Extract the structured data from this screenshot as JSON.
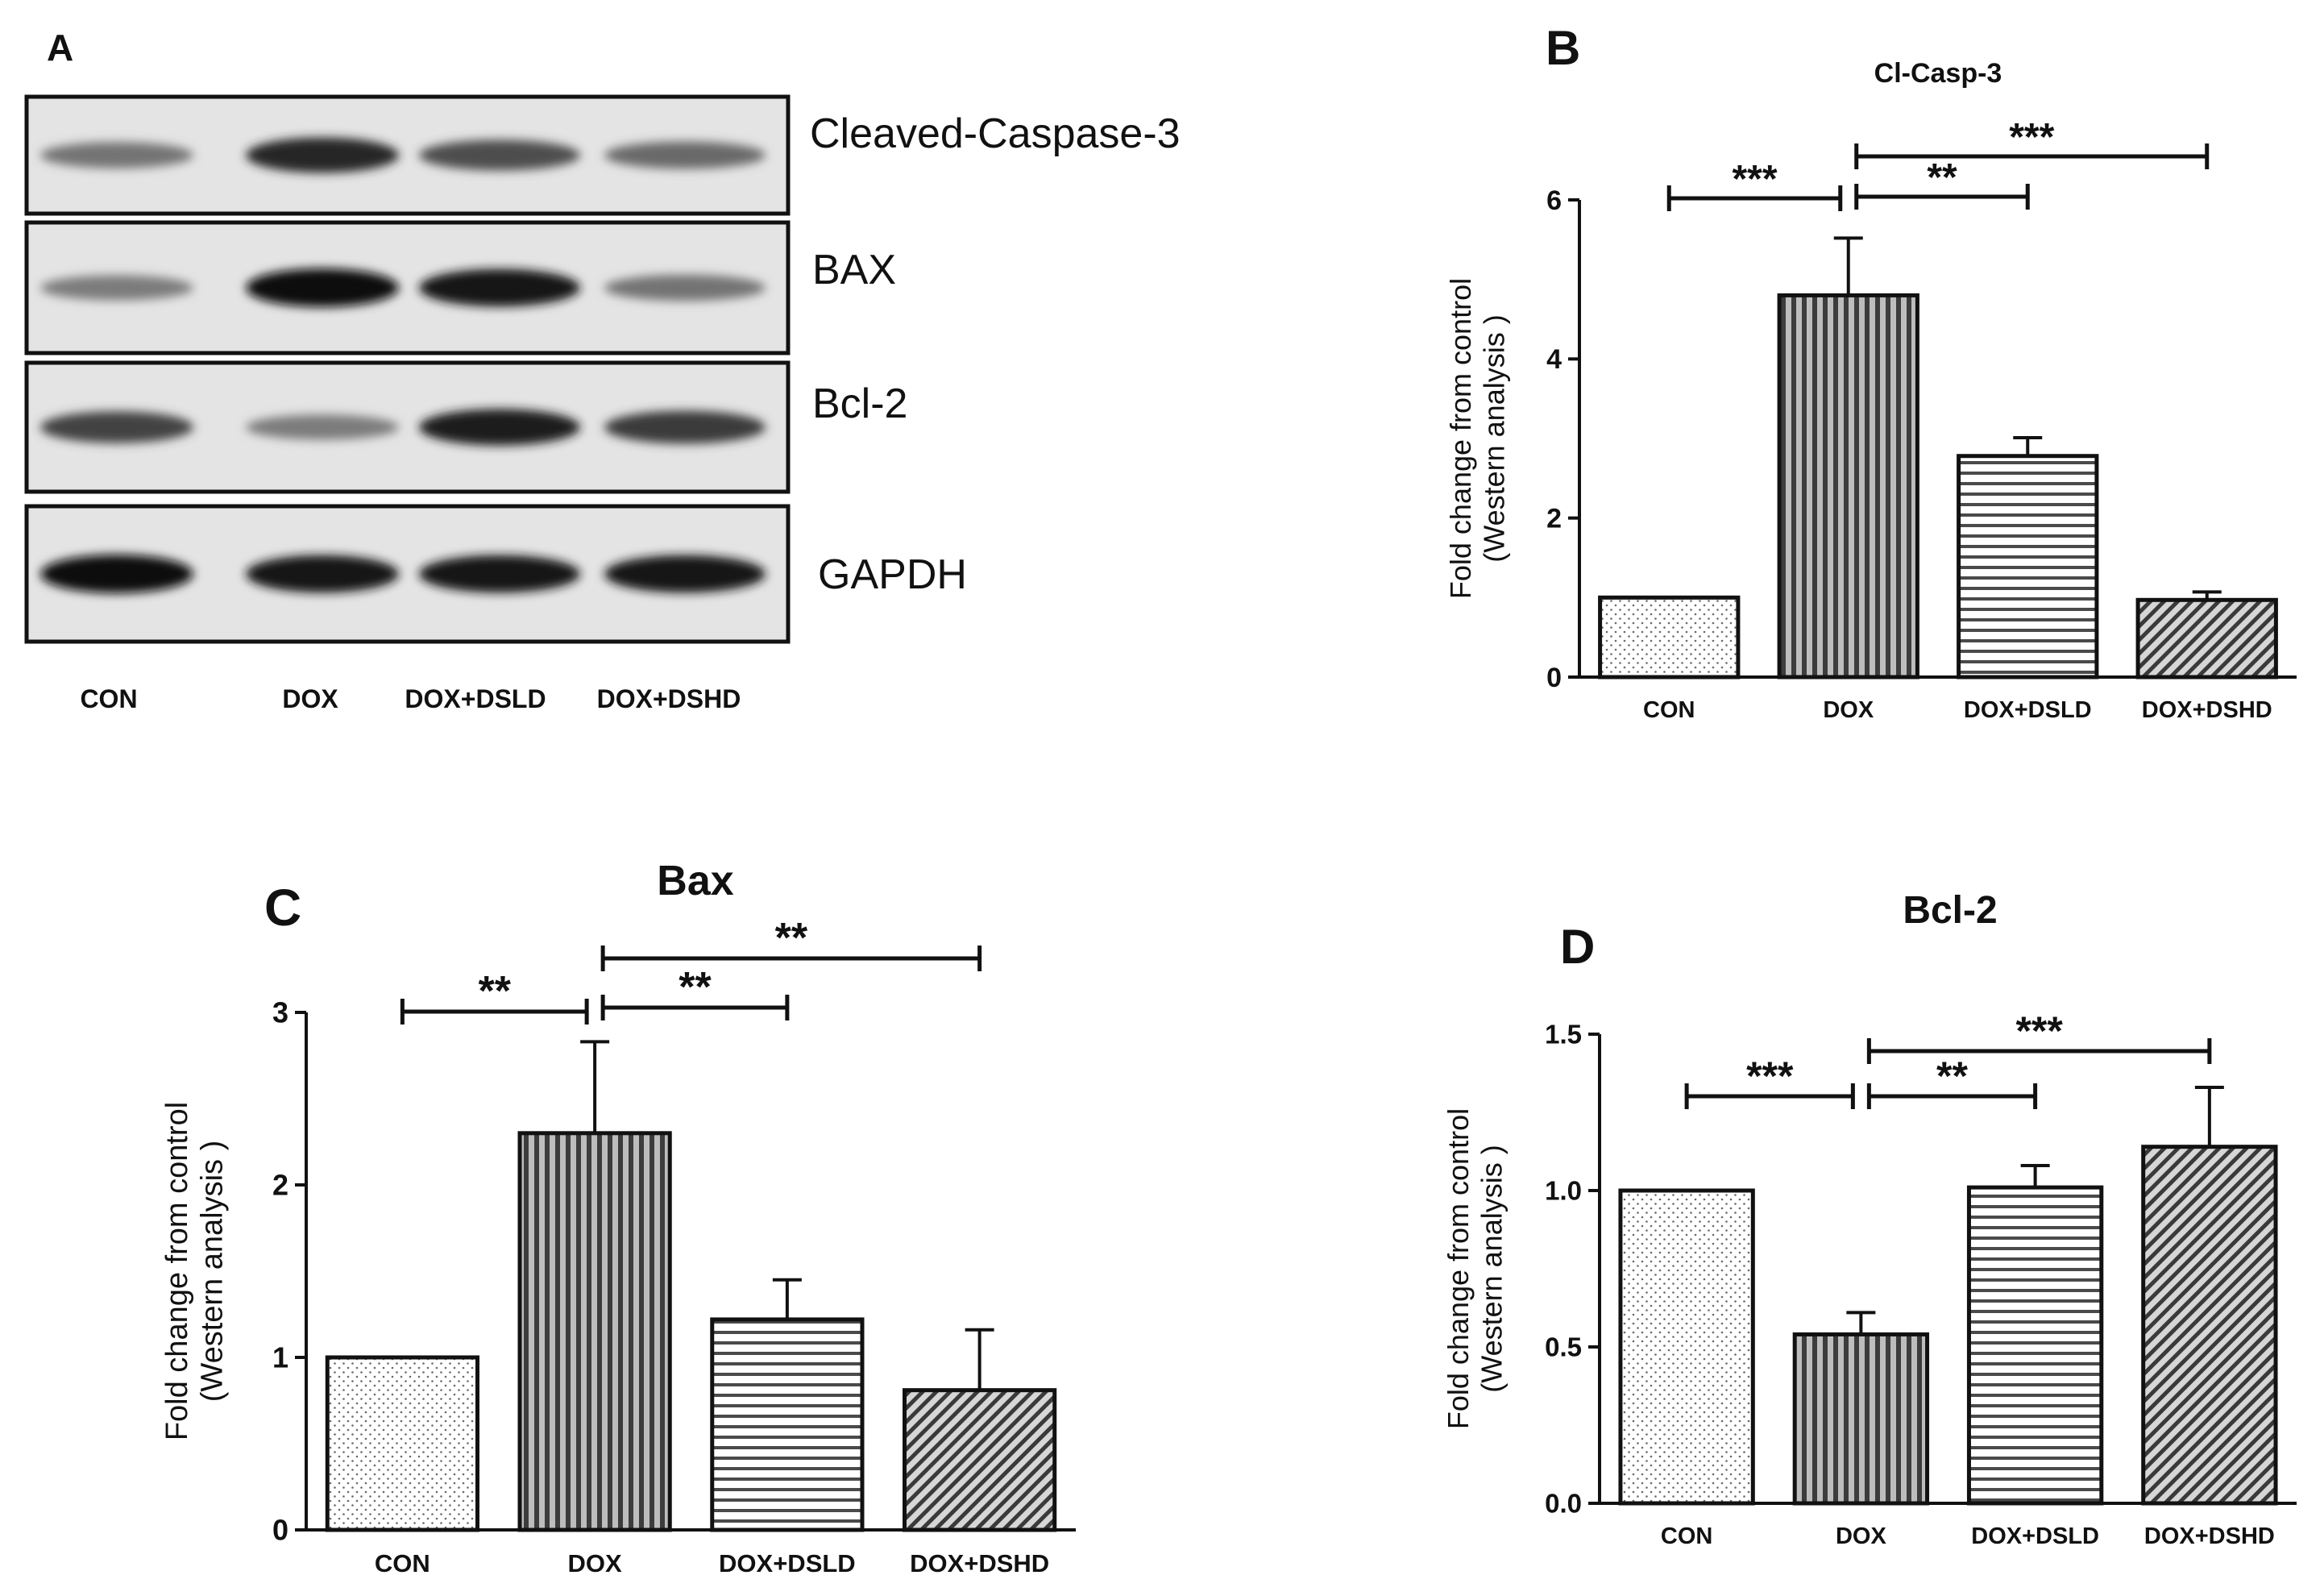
{
  "panel_a": {
    "label": "A",
    "blots": [
      {
        "label": "Cleaved-Caspase-3",
        "intensities": [
          0.45,
          0.85,
          0.65,
          0.5
        ]
      },
      {
        "label": "BAX",
        "intensities": [
          0.4,
          1.0,
          0.95,
          0.45
        ]
      },
      {
        "label": "Bcl-2",
        "intensities": [
          0.7,
          0.4,
          0.9,
          0.75
        ]
      },
      {
        "label": "GAPDH",
        "intensities": [
          1.0,
          0.95,
          0.95,
          0.95
        ]
      }
    ],
    "lanes": [
      "CON",
      "DOX",
      "DOX+DSLD",
      "DOX+DSHD"
    ]
  },
  "chart_data": [
    {
      "panel": "B",
      "type": "bar",
      "title": "Cl-Casp-3",
      "ylabel_line1": "Fold change from control",
      "ylabel_line2": "(Western analysis )",
      "categories": [
        "CON",
        "DOX",
        "DOX+DSLD",
        "DOX+DSHD"
      ],
      "values": [
        1.0,
        4.8,
        2.78,
        0.97
      ],
      "errors": [
        0,
        0.72,
        0.23,
        0.1
      ],
      "ylim": [
        0,
        6
      ],
      "yticks": [
        "0",
        "2",
        "4",
        "6"
      ],
      "patterns": [
        "dots",
        "vertical",
        "horizontal",
        "diagonal"
      ],
      "significance": [
        {
          "from": 0,
          "to": 1,
          "label": "***"
        },
        {
          "from": 1,
          "to": 2,
          "label": "**"
        },
        {
          "from": 1,
          "to": 3,
          "label": "***"
        }
      ]
    },
    {
      "panel": "C",
      "type": "bar",
      "title": "Bax",
      "ylabel_line1": "Fold change from control",
      "ylabel_line2": "(Western analysis )",
      "categories": [
        "CON",
        "DOX",
        "DOX+DSLD",
        "DOX+DSHD"
      ],
      "values": [
        1.0,
        2.3,
        1.22,
        0.81
      ],
      "errors": [
        0,
        0.53,
        0.23,
        0.35
      ],
      "ylim": [
        0,
        3
      ],
      "yticks": [
        "0",
        "1",
        "2",
        "3"
      ],
      "patterns": [
        "dots",
        "vertical",
        "horizontal",
        "diagonal"
      ],
      "significance": [
        {
          "from": 0,
          "to": 1,
          "label": "**"
        },
        {
          "from": 1,
          "to": 2,
          "label": "**"
        },
        {
          "from": 1,
          "to": 3,
          "label": "**"
        }
      ]
    },
    {
      "panel": "D",
      "type": "bar",
      "title": "Bcl-2",
      "ylabel_line1": "Fold change from control",
      "ylabel_line2": "(Western analysis )",
      "categories": [
        "CON",
        "DOX",
        "DOX+DSLD",
        "DOX+DSHD"
      ],
      "values": [
        1.0,
        0.54,
        1.01,
        1.14
      ],
      "errors": [
        0,
        0.07,
        0.07,
        0.19
      ],
      "ylim": [
        0,
        1.5
      ],
      "yticks": [
        "0.0",
        "0.5",
        "1.0",
        "1.5"
      ],
      "patterns": [
        "dots",
        "vertical",
        "horizontal",
        "diagonal"
      ],
      "significance": [
        {
          "from": 0,
          "to": 1,
          "label": "***"
        },
        {
          "from": 1,
          "to": 2,
          "label": "**"
        },
        {
          "from": 1,
          "to": 3,
          "label": "***"
        }
      ]
    }
  ]
}
